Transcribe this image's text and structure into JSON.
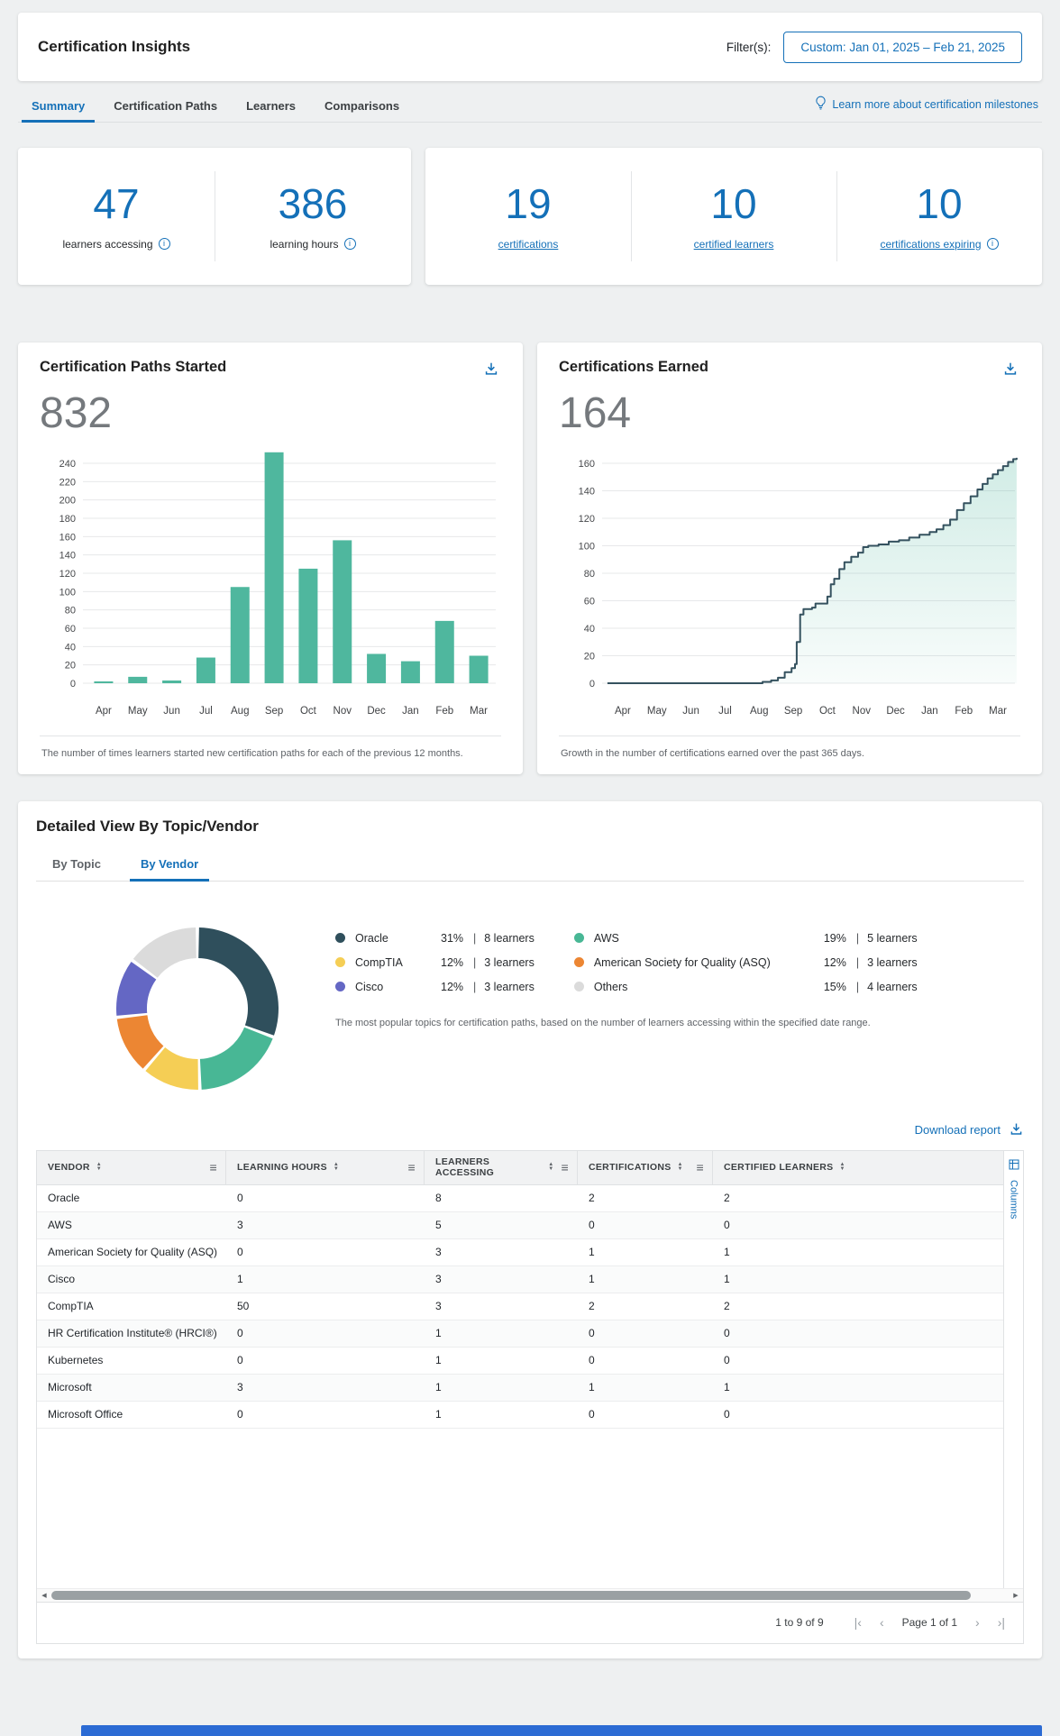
{
  "ui": {
    "value_sep": "|"
  },
  "header": {
    "title": "Certification Insights",
    "filter_label": "Filter(s):",
    "filter_value": "Custom: Jan 01, 2025 – Feb 21, 2025"
  },
  "nav_tabs": {
    "items": [
      {
        "label": "Summary",
        "active": true
      },
      {
        "label": "Certification Paths",
        "active": false
      },
      {
        "label": "Learners",
        "active": false
      },
      {
        "label": "Comparisons",
        "active": false
      }
    ],
    "learn_more": "Learn more about certification milestones"
  },
  "stats": {
    "learners_accessing": {
      "value": "47",
      "label": "learners accessing"
    },
    "learning_hours": {
      "value": "386",
      "label": "learning hours"
    },
    "certifications": {
      "value": "19",
      "label": "certifications"
    },
    "certified_learners": {
      "value": "10",
      "label": "certified learners"
    },
    "certifications_expiring": {
      "value": "10",
      "label": "certifications expiring"
    }
  },
  "detail": {
    "title": "Detailed View By Topic/Vendor",
    "tabs": [
      {
        "label": "By Topic",
        "active": false
      },
      {
        "label": "By Vendor",
        "active": true
      }
    ],
    "caption": "The most popular topics for certification paths, based on the number of learners accessing within the specified date range.",
    "download_report": "Download report"
  },
  "chart_data": [
    {
      "id": "certification_paths_started",
      "type": "bar",
      "title": "Certification Paths Started",
      "total": "832",
      "categories": [
        "Apr",
        "May",
        "Jun",
        "Jul",
        "Aug",
        "Sep",
        "Oct",
        "Nov",
        "Dec",
        "Jan",
        "Feb",
        "Mar"
      ],
      "values": [
        2,
        7,
        3,
        28,
        105,
        252,
        125,
        156,
        32,
        24,
        68,
        30
      ],
      "ylim": [
        0,
        240
      ],
      "ytick_step": 20,
      "grid": true,
      "bar_color": "#4FB79E",
      "caption": "The number of times learners started new certification paths for each of the previous 12 months."
    },
    {
      "id": "certifications_earned",
      "type": "area",
      "title": "Certifications Earned",
      "total": "164",
      "categories": [
        "Apr",
        "May",
        "Jun",
        "Jul",
        "Aug",
        "Sep",
        "Oct",
        "Nov",
        "Dec",
        "Jan",
        "Feb",
        "Mar"
      ],
      "points": [
        [
          -0.45,
          0
        ],
        [
          3.8,
          0
        ],
        [
          4.1,
          1
        ],
        [
          4.35,
          2
        ],
        [
          4.55,
          4
        ],
        [
          4.75,
          8
        ],
        [
          4.95,
          11
        ],
        [
          5.05,
          14
        ],
        [
          5.1,
          30
        ],
        [
          5.2,
          50
        ],
        [
          5.3,
          54
        ],
        [
          5.55,
          55
        ],
        [
          5.65,
          58
        ],
        [
          5.9,
          58
        ],
        [
          6.0,
          63
        ],
        [
          6.1,
          72
        ],
        [
          6.2,
          76
        ],
        [
          6.35,
          83
        ],
        [
          6.5,
          88
        ],
        [
          6.7,
          92
        ],
        [
          6.9,
          95
        ],
        [
          7.05,
          99
        ],
        [
          7.2,
          100
        ],
        [
          7.5,
          101
        ],
        [
          7.8,
          103
        ],
        [
          8.1,
          104
        ],
        [
          8.4,
          106
        ],
        [
          8.7,
          108
        ],
        [
          9.0,
          110
        ],
        [
          9.2,
          112
        ],
        [
          9.4,
          115
        ],
        [
          9.6,
          119
        ],
        [
          9.8,
          126
        ],
        [
          10.0,
          131
        ],
        [
          10.2,
          136
        ],
        [
          10.4,
          141
        ],
        [
          10.55,
          145
        ],
        [
          10.7,
          149
        ],
        [
          10.85,
          152
        ],
        [
          11.0,
          155
        ],
        [
          11.15,
          158
        ],
        [
          11.3,
          161
        ],
        [
          11.45,
          163
        ],
        [
          11.55,
          164
        ]
      ],
      "ylim": [
        0,
        160
      ],
      "ytick_step": 20,
      "grid": true,
      "line_color": "#35525F",
      "fill_color": "#4FB79E",
      "caption": "Growth in the number of certifications earned over the past 365 days."
    },
    {
      "id": "learners_by_vendor",
      "type": "pie",
      "slices": [
        {
          "name": "Oracle",
          "pct": 31,
          "pct_label": "31%",
          "learners_label": "8 learners",
          "color": "#2F4F5C"
        },
        {
          "name": "AWS",
          "pct": 19,
          "pct_label": "19%",
          "learners_label": "5 learners",
          "color": "#48B795"
        },
        {
          "name": "CompTIA",
          "pct": 12,
          "pct_label": "12%",
          "learners_label": "3 learners",
          "color": "#F5CE55"
        },
        {
          "name": "American Society for Quality (ASQ)",
          "pct": 12,
          "pct_label": "12%",
          "learners_label": "3 learners",
          "color": "#EC8633"
        },
        {
          "name": "Cisco",
          "pct": 12,
          "pct_label": "12%",
          "learners_label": "3 learners",
          "color": "#6467C4"
        },
        {
          "name": "Others",
          "pct": 15,
          "pct_label": "15%",
          "learners_label": "4 learners",
          "color": "#DBDBDB"
        }
      ],
      "legend_columns": [
        [
          0,
          2,
          4
        ],
        [
          1,
          3,
          5
        ]
      ]
    }
  ],
  "table": {
    "columns": [
      "VENDOR",
      "LEARNING HOURS",
      "LEARNERS ACCESSING",
      "CERTIFICATIONS",
      "CERTIFIED LEARNERS"
    ],
    "rows": [
      [
        "Oracle",
        "0",
        "8",
        "2",
        "2"
      ],
      [
        "AWS",
        "3",
        "5",
        "0",
        "0"
      ],
      [
        "American Society for Quality (ASQ)",
        "0",
        "3",
        "1",
        "1"
      ],
      [
        "Cisco",
        "1",
        "3",
        "1",
        "1"
      ],
      [
        "CompTIA",
        "50",
        "3",
        "2",
        "2"
      ],
      [
        "HR Certification Institute® (HRCI®)",
        "0",
        "1",
        "0",
        "0"
      ],
      [
        "Kubernetes",
        "0",
        "1",
        "0",
        "0"
      ],
      [
        "Microsoft",
        "3",
        "1",
        "1",
        "1"
      ],
      [
        "Microsoft Office",
        "0",
        "1",
        "0",
        "0"
      ]
    ],
    "columns_tab": "Columns",
    "pagination": {
      "range": "1 to 9 of 9",
      "page": "Page 1 of 1"
    }
  }
}
